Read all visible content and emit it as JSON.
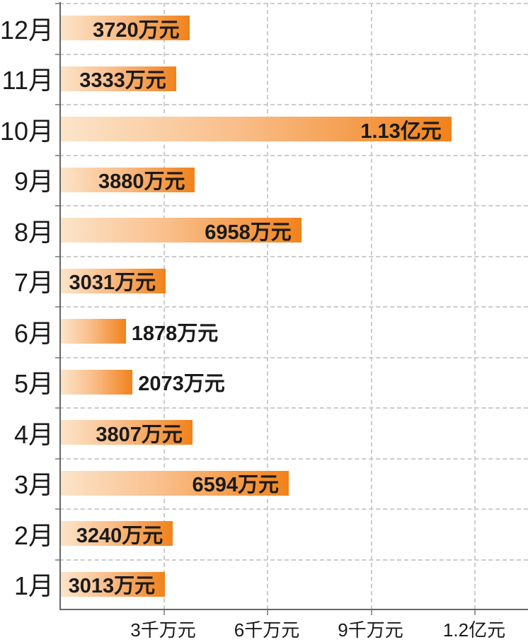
{
  "chart_data": {
    "type": "bar",
    "orientation": "horizontal",
    "title": "",
    "unit": "万元",
    "xlim": [
      0,
      12000
    ],
    "grid": "dashed",
    "legend": "none",
    "categories": [
      "12月",
      "11月",
      "10月",
      "9月",
      "8月",
      "7月",
      "6月",
      "5月",
      "4月",
      "3月",
      "2月",
      "1月"
    ],
    "values": [
      3720,
      3333,
      11300,
      3880,
      6958,
      3031,
      1878,
      2073,
      3807,
      6594,
      3240,
      3013
    ],
    "rows": [
      {
        "month": "12月",
        "value": 3720,
        "label": "3720万元",
        "label_position": "inside"
      },
      {
        "month": "11月",
        "value": 3333,
        "label": "3333万元",
        "label_position": "inside"
      },
      {
        "month": "10月",
        "value": 11300,
        "label": "1.13亿元",
        "label_position": "inside"
      },
      {
        "month": "9月",
        "value": 3880,
        "label": "3880万元",
        "label_position": "inside"
      },
      {
        "month": "8月",
        "value": 6958,
        "label": "6958万元",
        "label_position": "inside"
      },
      {
        "month": "7月",
        "value": 3031,
        "label": "3031万元",
        "label_position": "inside"
      },
      {
        "month": "6月",
        "value": 1878,
        "label": "1878万元",
        "label_position": "outside"
      },
      {
        "month": "5月",
        "value": 2073,
        "label": "2073万元",
        "label_position": "outside"
      },
      {
        "month": "4月",
        "value": 3807,
        "label": "3807万元",
        "label_position": "inside"
      },
      {
        "month": "3月",
        "value": 6594,
        "label": "6594万元",
        "label_position": "inside"
      },
      {
        "month": "2月",
        "value": 3240,
        "label": "3240万元",
        "label_position": "inside"
      },
      {
        "month": "1月",
        "value": 3013,
        "label": "3013万元",
        "label_position": "inside"
      }
    ],
    "x_ticks": [
      {
        "value": 3000,
        "label": "3千万元"
      },
      {
        "value": 6000,
        "label": "6千万元"
      },
      {
        "value": 9000,
        "label": "9千万元"
      },
      {
        "value": 12000,
        "label": "1.2亿元"
      }
    ],
    "colors": {
      "bar_gradient_start": "#fce4c9",
      "bar_gradient_mid": "#f9be8a",
      "bar_gradient_end": "#f1821b",
      "text": "#1a1a1a",
      "gridline": "#cccccc",
      "axis": "#666666",
      "background": "#ffffff"
    }
  }
}
